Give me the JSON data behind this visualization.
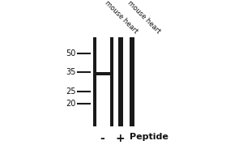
{
  "background_color": "#ffffff",
  "figure_width": 3.0,
  "figure_height": 2.0,
  "dpi": 100,
  "lane_color": "#1a1a1a",
  "marker_color": "#1a1a1a",
  "label1": "mouse heart",
  "label2": "mouse heart",
  "mw_labels": [
    "50",
    "35",
    "25",
    "20"
  ],
  "bottom_labels": [
    "-",
    "+",
    "Peptide"
  ]
}
